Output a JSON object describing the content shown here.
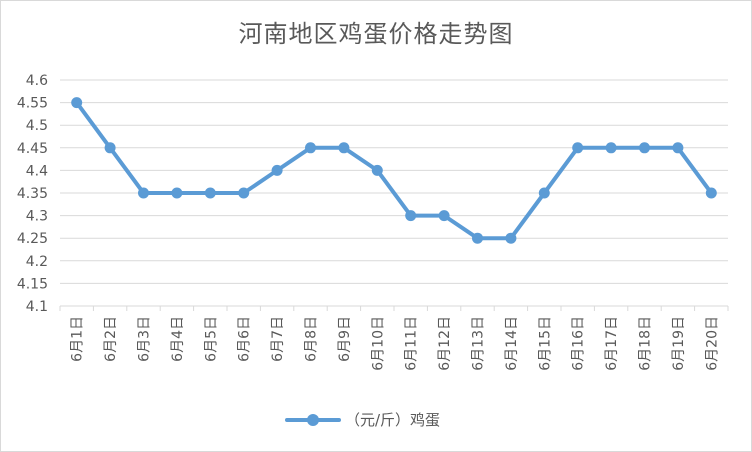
{
  "chart_data": {
    "type": "line",
    "title": "河南地区鸡蛋价格走势图",
    "xlabel": "",
    "ylabel": "",
    "categories": [
      "6月1日",
      "6月2日",
      "6月3日",
      "6月4日",
      "6月5日",
      "6月6日",
      "6月7日",
      "6月8日",
      "6月9日",
      "6月10日",
      "6月11日",
      "6月12日",
      "6月13日",
      "6月14日",
      "6月15日",
      "6月16日",
      "6月17日",
      "6月18日",
      "6月19日",
      "6月20日"
    ],
    "series": [
      {
        "name": "（元/斤）鸡蛋",
        "values": [
          4.55,
          4.45,
          4.35,
          4.35,
          4.35,
          4.35,
          4.4,
          4.45,
          4.45,
          4.4,
          4.3,
          4.3,
          4.25,
          4.25,
          4.35,
          4.45,
          4.45,
          4.45,
          4.45,
          4.35
        ]
      }
    ],
    "ylim": [
      4.1,
      4.6
    ],
    "yticks": [
      "4.1",
      "4.15",
      "4.2",
      "4.25",
      "4.3",
      "4.35",
      "4.4",
      "4.45",
      "4.5",
      "4.55",
      "4.6"
    ],
    "grid": true,
    "legend_position": "bottom",
    "colors": {
      "series": "#5b9bd5",
      "grid": "#d9d9d9",
      "text": "#595959"
    }
  }
}
